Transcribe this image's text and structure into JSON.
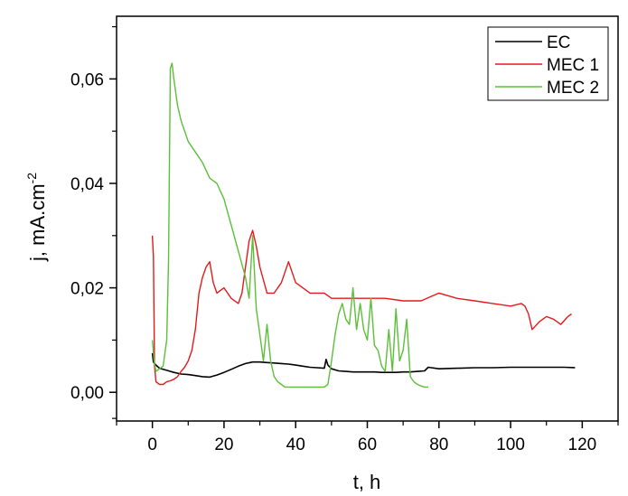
{
  "chart_data": {
    "type": "line",
    "xlabel": "t, h",
    "ylabel_main": "j, mA.cm",
    "ylabel_sup": "-2",
    "xlim": [
      -10,
      130
    ],
    "ylim": [
      -0.0055,
      0.072
    ],
    "xticks": [
      0,
      20,
      40,
      60,
      80,
      100,
      120
    ],
    "xtick_labels": [
      "0",
      "20",
      "40",
      "60",
      "80",
      "100",
      "120"
    ],
    "yticks": [
      0.0,
      0.02,
      0.04,
      0.06
    ],
    "ytick_labels": [
      "0,00",
      "0,02",
      "0,04",
      "0,06"
    ],
    "grid": false,
    "legend_position": "top-right",
    "series": [
      {
        "name": "EC",
        "color": "#000000",
        "x": [
          0,
          0.3,
          1,
          2,
          4,
          6,
          8,
          10,
          12,
          14,
          16,
          18,
          20,
          22,
          24,
          26,
          28,
          30,
          32,
          34,
          36,
          38,
          40,
          42,
          44,
          46,
          48,
          48.5,
          49,
          50,
          52,
          54,
          56,
          58,
          60,
          62,
          64,
          66,
          68,
          70,
          72,
          74,
          76,
          77,
          80,
          85,
          90,
          95,
          100,
          105,
          110,
          115,
          118
        ],
        "y": [
          0.0075,
          0.0058,
          0.0052,
          0.0046,
          0.0042,
          0.0038,
          0.0035,
          0.0034,
          0.0032,
          0.003,
          0.0029,
          0.0033,
          0.0038,
          0.0044,
          0.005,
          0.0055,
          0.0058,
          0.0058,
          0.0057,
          0.0056,
          0.0055,
          0.0054,
          0.0052,
          0.005,
          0.0048,
          0.0047,
          0.0046,
          0.0063,
          0.0052,
          0.0045,
          0.0041,
          0.004,
          0.0039,
          0.0039,
          0.0039,
          0.0039,
          0.0038,
          0.0038,
          0.0038,
          0.0039,
          0.0039,
          0.004,
          0.0041,
          0.0048,
          0.0045,
          0.0046,
          0.0047,
          0.0047,
          0.0048,
          0.0048,
          0.0048,
          0.0048,
          0.0047
        ]
      },
      {
        "name": "MEC 1",
        "color": "#e31a1c",
        "x": [
          0,
          0.3,
          0.6,
          1,
          2,
          3,
          4,
          5,
          6,
          7,
          8,
          9,
          10,
          11,
          12,
          13,
          14,
          15,
          16,
          17,
          18,
          20,
          22,
          24,
          25,
          26,
          27,
          28,
          29,
          30,
          32,
          34,
          36,
          38,
          40,
          42,
          44,
          46,
          48,
          50,
          55,
          60,
          65,
          70,
          75,
          80,
          85,
          90,
          95,
          100,
          103,
          104,
          105,
          106,
          108,
          110,
          112,
          114,
          116,
          117
        ],
        "y": [
          0.03,
          0.026,
          0.005,
          0.002,
          0.0015,
          0.0015,
          0.002,
          0.0022,
          0.0025,
          0.003,
          0.004,
          0.0048,
          0.006,
          0.008,
          0.012,
          0.019,
          0.022,
          0.024,
          0.025,
          0.021,
          0.019,
          0.02,
          0.018,
          0.017,
          0.019,
          0.024,
          0.029,
          0.031,
          0.028,
          0.024,
          0.019,
          0.019,
          0.021,
          0.025,
          0.021,
          0.02,
          0.019,
          0.019,
          0.019,
          0.018,
          0.018,
          0.018,
          0.018,
          0.0175,
          0.0175,
          0.019,
          0.018,
          0.0175,
          0.017,
          0.0165,
          0.017,
          0.0165,
          0.015,
          0.012,
          0.0135,
          0.0145,
          0.014,
          0.013,
          0.0145,
          0.015
        ]
      },
      {
        "name": "MEC 2",
        "color": "#5cbf3a",
        "x": [
          0,
          0.5,
          1,
          2,
          3,
          4,
          4.5,
          5,
          5.5,
          6,
          7,
          8,
          10,
          12,
          14,
          16,
          18,
          20,
          22,
          24,
          26,
          27,
          28,
          29,
          30,
          31,
          32,
          33,
          34,
          35,
          36,
          37,
          38,
          40,
          42,
          44,
          46,
          48,
          49,
          50,
          51,
          52,
          53,
          54,
          55,
          56,
          57,
          58,
          59,
          60,
          61,
          62,
          63,
          64,
          65,
          66,
          67,
          68,
          69,
          70,
          71,
          72,
          73,
          74,
          75,
          76,
          77
        ],
        "y": [
          0.01,
          0.006,
          0.004,
          0.0045,
          0.005,
          0.01,
          0.025,
          0.062,
          0.063,
          0.06,
          0.055,
          0.052,
          0.048,
          0.046,
          0.044,
          0.041,
          0.04,
          0.037,
          0.032,
          0.027,
          0.022,
          0.018,
          0.03,
          0.016,
          0.011,
          0.006,
          0.013,
          0.006,
          0.003,
          0.002,
          0.0015,
          0.001,
          0.001,
          0.001,
          0.001,
          0.001,
          0.001,
          0.001,
          0.0015,
          0.006,
          0.011,
          0.015,
          0.017,
          0.014,
          0.013,
          0.02,
          0.012,
          0.017,
          0.012,
          0.01,
          0.018,
          0.009,
          0.008,
          0.005,
          0.004,
          0.012,
          0.004,
          0.016,
          0.006,
          0.008,
          0.014,
          0.003,
          0.002,
          0.0015,
          0.0012,
          0.001,
          0.001
        ]
      }
    ]
  }
}
